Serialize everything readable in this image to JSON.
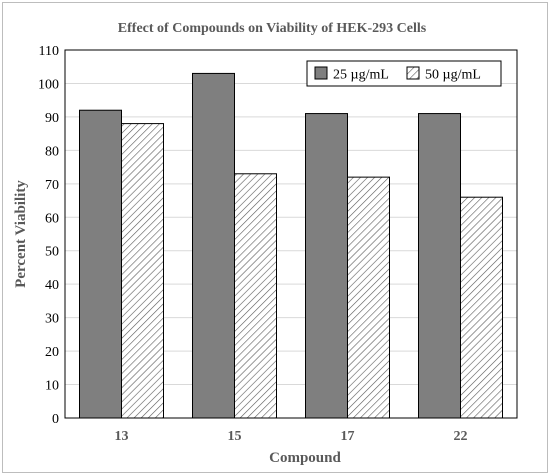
{
  "chart_data": {
    "type": "bar",
    "title": "Effect of Compounds on Viability of HEK-293 Cells",
    "xlabel": "Compound",
    "ylabel": "Percent Viability",
    "categories": [
      "13",
      "15",
      "17",
      "22"
    ],
    "ylim": [
      0,
      110
    ],
    "yticks": [
      0,
      10,
      20,
      30,
      40,
      50,
      60,
      70,
      80,
      90,
      100,
      110
    ],
    "grid": true,
    "legend_position": "top-right",
    "series": [
      {
        "name": "25 µg/mL",
        "values": [
          92,
          103,
          91,
          91
        ],
        "fill": "solid-gray",
        "color": "#7f7f7f"
      },
      {
        "name": "50 µg/mL",
        "values": [
          88,
          73,
          72,
          66
        ],
        "fill": "diagonal-hatch",
        "color": "#7f7f7f"
      }
    ]
  }
}
